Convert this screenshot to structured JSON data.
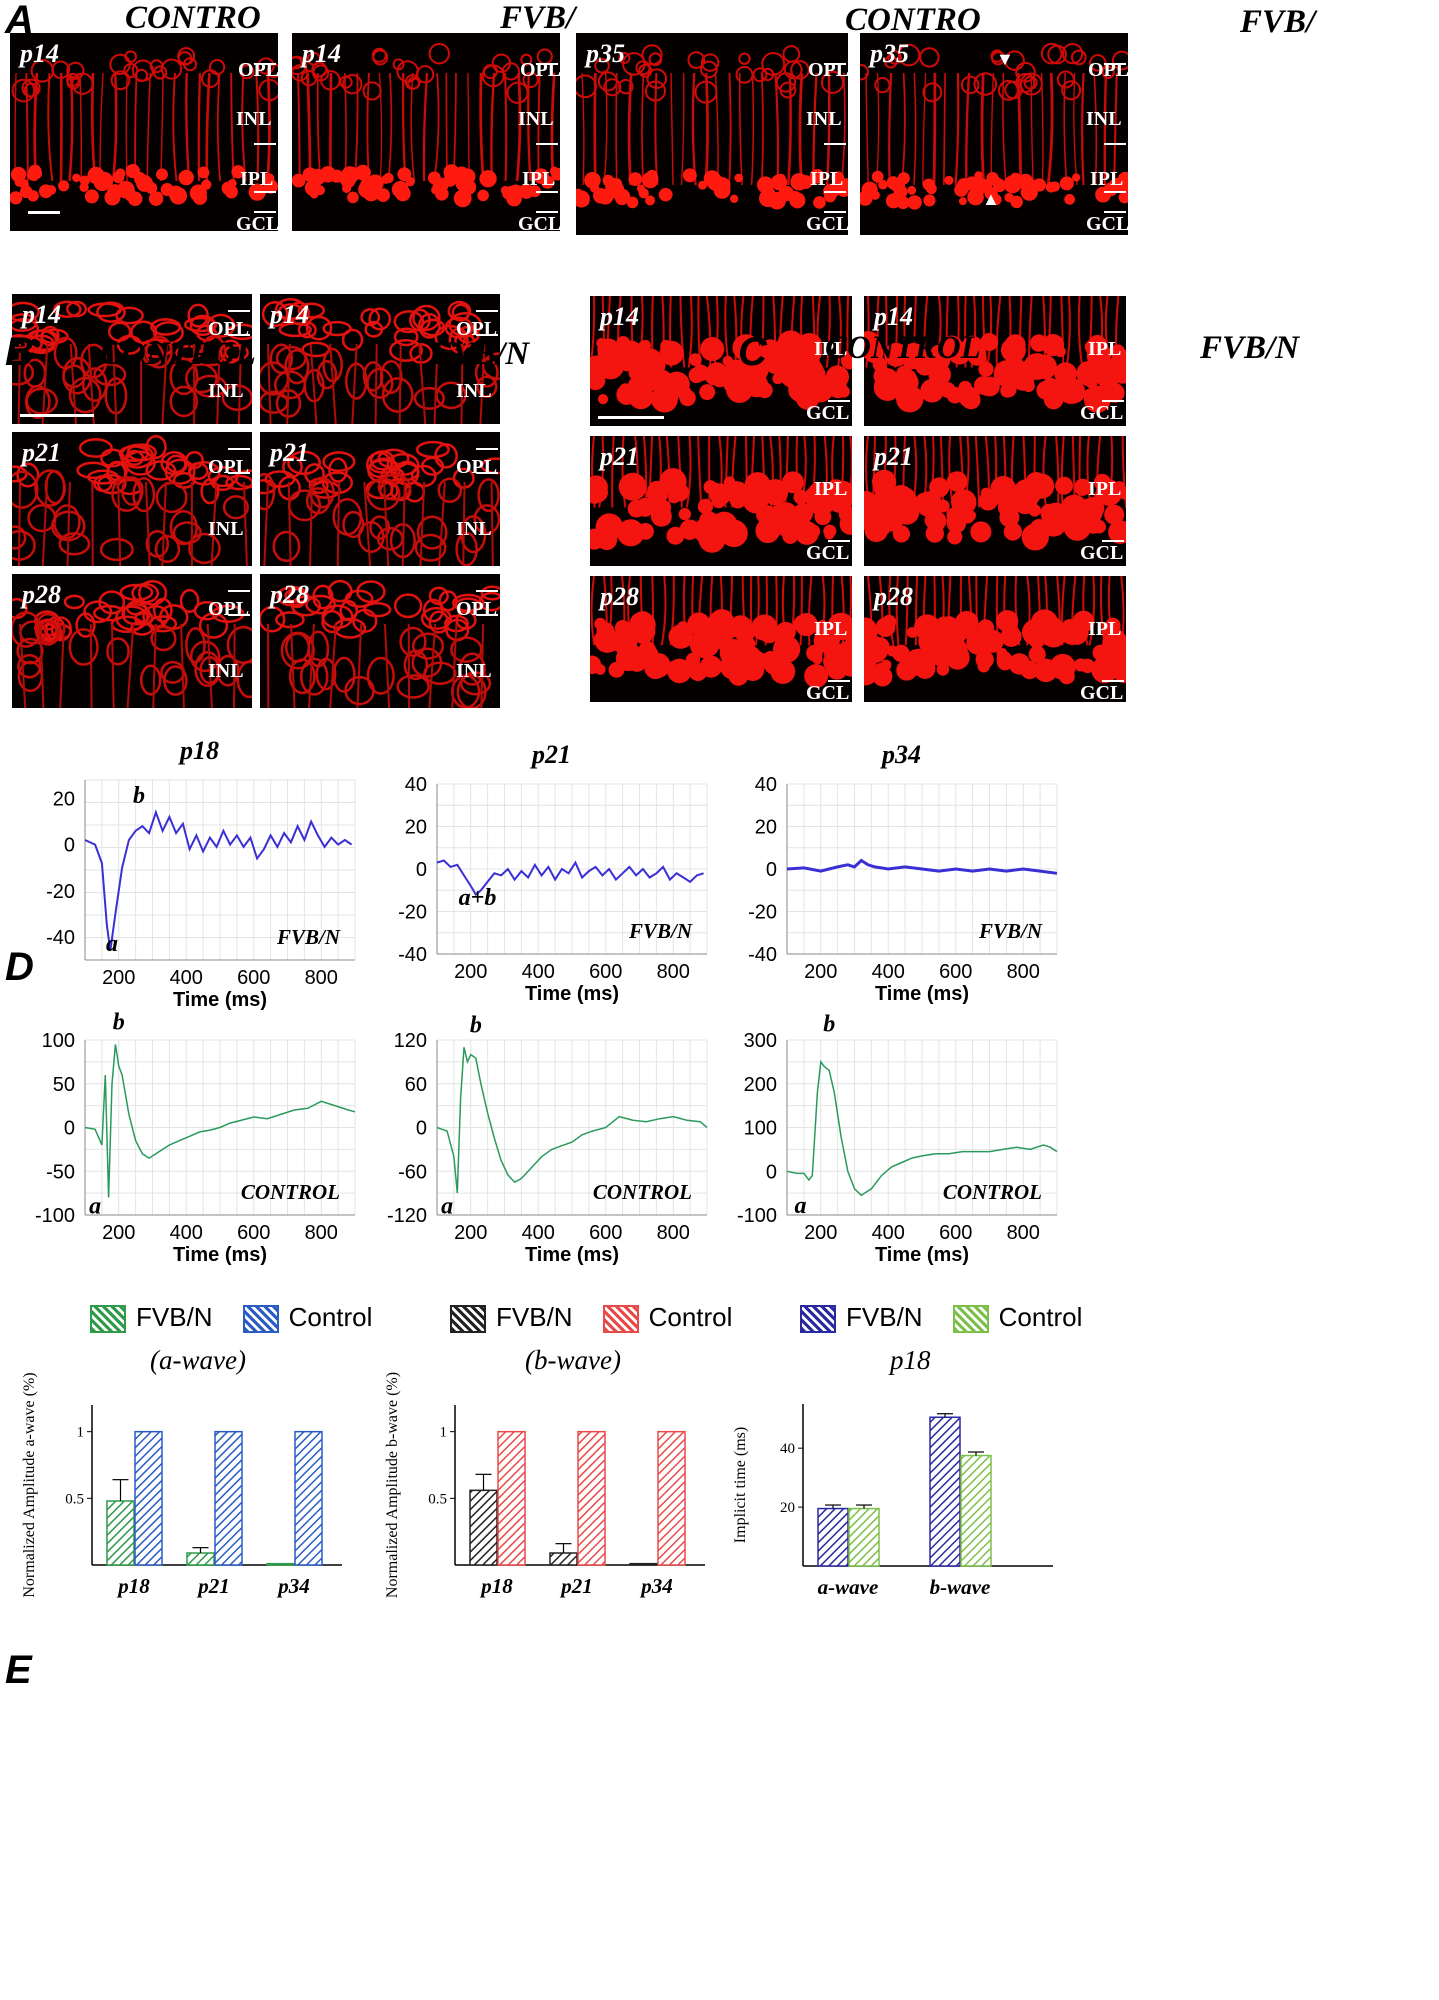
{
  "panels": {
    "A": {
      "letter": "A",
      "titles": [
        "CONTRO",
        "FVB/",
        "CONTRO",
        "FVB/"
      ],
      "images": [
        {
          "age": "p14",
          "labels": [
            "OPL",
            "INL",
            "IPL",
            "GCL"
          ]
        },
        {
          "age": "p14",
          "labels": [
            "OPL",
            "INL",
            "IPL",
            "GCL"
          ]
        },
        {
          "age": "p35",
          "labels": [
            "OPL",
            "INL",
            "IPL",
            "GCL"
          ]
        },
        {
          "age": "p35",
          "labels": [
            "OPL",
            "INL",
            "IPL",
            "GCL"
          ]
        }
      ]
    },
    "B": {
      "letter": "B",
      "titles": [
        "CONTROL",
        "FVB/N"
      ],
      "images": [
        {
          "age": "p14",
          "labels": [
            "OPL",
            "INL"
          ]
        },
        {
          "age": "p14",
          "labels": [
            "OPL",
            "INL"
          ]
        },
        {
          "age": "p21",
          "labels": [
            "OPL",
            "INL"
          ]
        },
        {
          "age": "p21",
          "labels": [
            "OPL",
            "INL"
          ]
        },
        {
          "age": "p28",
          "labels": [
            "OPL",
            "INL"
          ]
        },
        {
          "age": "p28",
          "labels": [
            "OPL",
            "INL"
          ]
        }
      ]
    },
    "C": {
      "letter": "C",
      "titles": [
        "CONTROL",
        "FVB/N"
      ],
      "images": [
        {
          "age": "p14",
          "labels": [
            "IPL",
            "GCL"
          ]
        },
        {
          "age": "p14",
          "labels": [
            "IPL",
            "GCL"
          ]
        },
        {
          "age": "p21",
          "labels": [
            "IPL",
            "GCL"
          ]
        },
        {
          "age": "p21",
          "labels": [
            "IPL",
            "GCL"
          ]
        },
        {
          "age": "p28",
          "labels": [
            "IPL",
            "GCL"
          ]
        },
        {
          "age": "p28",
          "labels": [
            "IPL",
            "GCL"
          ]
        }
      ]
    },
    "D": {
      "letter": "D"
    },
    "E": {
      "letter": "E"
    }
  },
  "chart_data": [
    {
      "type": "line",
      "title": "p18",
      "corner": "FVB/N",
      "xlabel": "Time (ms)",
      "xticks": [
        200,
        400,
        600,
        800
      ],
      "xlim": [
        100,
        900
      ],
      "yticks": [
        20,
        0,
        -20,
        -40
      ],
      "ylim": [
        -50,
        28
      ],
      "color": "#3a2fd4",
      "annotations": [
        {
          "text": "a",
          "x": 180,
          "y": -46
        },
        {
          "text": "b",
          "x": 260,
          "y": 18
        }
      ],
      "series": [
        {
          "x": [
            100,
            130,
            150,
            165,
            175,
            190,
            210,
            230,
            250,
            270,
            290,
            310,
            330,
            350,
            370,
            390,
            410,
            430,
            450,
            470,
            490,
            510,
            530,
            550,
            570,
            590,
            610,
            630,
            650,
            670,
            690,
            710,
            730,
            750,
            770,
            790,
            810,
            830,
            850,
            870,
            890
          ],
          "y": [
            2,
            0,
            -8,
            -35,
            -46,
            -30,
            -10,
            2,
            6,
            8,
            5,
            14,
            6,
            12,
            5,
            9,
            -2,
            4,
            -3,
            3,
            -1,
            6,
            0,
            4,
            -1,
            3,
            -6,
            -2,
            4,
            -1,
            5,
            1,
            8,
            2,
            10,
            4,
            -1,
            3,
            0,
            2,
            0
          ]
        }
      ]
    },
    {
      "type": "line",
      "title": "p21",
      "corner": "FVB/N",
      "xlabel": "Time (ms)",
      "xticks": [
        200,
        400,
        600,
        800
      ],
      "xlim": [
        100,
        900
      ],
      "yticks": [
        40,
        20,
        0,
        -20,
        -40
      ],
      "ylim": [
        -40,
        40
      ],
      "color": "#3a2fd4",
      "annotations": [
        {
          "text": "a+b",
          "x": 220,
          "y": -17
        }
      ],
      "series": [
        {
          "x": [
            100,
            120,
            140,
            160,
            180,
            200,
            215,
            230,
            250,
            270,
            290,
            310,
            330,
            350,
            370,
            390,
            410,
            430,
            450,
            470,
            490,
            510,
            530,
            550,
            570,
            590,
            610,
            630,
            650,
            670,
            690,
            710,
            730,
            750,
            770,
            790,
            810,
            830,
            850,
            870,
            890
          ],
          "y": [
            3,
            4,
            1,
            2,
            -3,
            -8,
            -12,
            -10,
            -6,
            -2,
            -3,
            0,
            -5,
            -1,
            -4,
            2,
            -3,
            1,
            -5,
            0,
            -2,
            3,
            -4,
            -1,
            1,
            -3,
            0,
            -5,
            -2,
            1,
            -3,
            0,
            -4,
            -2,
            1,
            -5,
            -2,
            -4,
            -6,
            -3,
            -2
          ]
        }
      ]
    },
    {
      "type": "line",
      "title": "p34",
      "corner": "FVB/N",
      "xlabel": "Time (ms)",
      "xticks": [
        200,
        400,
        600,
        800
      ],
      "xlim": [
        100,
        900
      ],
      "yticks": [
        40,
        20,
        0,
        -20,
        -40
      ],
      "ylim": [
        -40,
        40
      ],
      "color": "#3a2fd4",
      "annotations": [],
      "series": [
        {
          "x": [
            100,
            150,
            200,
            250,
            280,
            300,
            320,
            340,
            360,
            400,
            450,
            500,
            550,
            600,
            650,
            700,
            750,
            800,
            850,
            900
          ],
          "y": [
            0,
            0.5,
            -1,
            1,
            2,
            1,
            4,
            2,
            1,
            0,
            1,
            0,
            -1,
            0,
            -1,
            0,
            -1,
            0,
            -1,
            -2
          ]
        }
      ]
    },
    {
      "type": "line",
      "title": "",
      "corner": "CONTROL",
      "xlabel": "Time (ms)",
      "xticks": [
        200,
        400,
        600,
        800
      ],
      "xlim": [
        100,
        900
      ],
      "yticks": [
        100,
        50,
        0,
        -50,
        -100
      ],
      "ylim": [
        -100,
        100
      ],
      "color": "#2a9a5c",
      "annotations": [
        {
          "text": "b",
          "x": 200,
          "y": 112
        },
        {
          "text": "a",
          "x": 130,
          "y": -98
        }
      ],
      "series": [
        {
          "x": [
            100,
            130,
            150,
            160,
            170,
            180,
            190,
            200,
            210,
            230,
            250,
            270,
            290,
            310,
            330,
            350,
            380,
            410,
            440,
            470,
            500,
            530,
            560,
            600,
            640,
            680,
            720,
            760,
            800,
            840,
            880,
            900
          ],
          "y": [
            0,
            -2,
            -20,
            60,
            -80,
            50,
            95,
            70,
            60,
            15,
            -15,
            -30,
            -35,
            -30,
            -25,
            -20,
            -15,
            -10,
            -5,
            -3,
            0,
            5,
            8,
            12,
            10,
            15,
            20,
            22,
            30,
            25,
            20,
            18
          ]
        }
      ]
    },
    {
      "type": "line",
      "title": "",
      "corner": "CONTROL",
      "xlabel": "Time (ms)",
      "xticks": [
        200,
        400,
        600,
        800
      ],
      "xlim": [
        100,
        900
      ],
      "yticks": [
        120,
        60,
        0,
        -60,
        -120
      ],
      "ylim": [
        -120,
        120
      ],
      "color": "#2a9a5c",
      "annotations": [
        {
          "text": "b",
          "x": 215,
          "y": 130
        },
        {
          "text": "a",
          "x": 130,
          "y": -118
        }
      ],
      "series": [
        {
          "x": [
            100,
            130,
            150,
            160,
            170,
            180,
            190,
            200,
            215,
            230,
            250,
            270,
            290,
            310,
            330,
            350,
            380,
            410,
            440,
            470,
            500,
            530,
            560,
            600,
            640,
            680,
            720,
            760,
            800,
            840,
            880,
            900
          ],
          "y": [
            0,
            -5,
            -40,
            -90,
            40,
            110,
            90,
            100,
            95,
            60,
            20,
            -15,
            -45,
            -65,
            -75,
            -70,
            -55,
            -40,
            -30,
            -25,
            -20,
            -10,
            -5,
            0,
            15,
            10,
            8,
            12,
            15,
            10,
            8,
            0
          ]
        }
      ]
    },
    {
      "type": "line",
      "title": "",
      "corner": "CONTROL",
      "xlabel": "Time (ms)",
      "xticks": [
        200,
        400,
        600,
        800
      ],
      "xlim": [
        100,
        900
      ],
      "yticks": [
        300,
        200,
        100,
        0,
        -100
      ],
      "ylim": [
        -100,
        300
      ],
      "color": "#2a9a5c",
      "annotations": [
        {
          "text": "b",
          "x": 225,
          "y": 320
        },
        {
          "text": "a",
          "x": 140,
          "y": -95
        }
      ],
      "series": [
        {
          "x": [
            100,
            130,
            150,
            165,
            175,
            190,
            200,
            210,
            225,
            240,
            260,
            280,
            300,
            320,
            350,
            380,
            410,
            440,
            470,
            500,
            540,
            580,
            620,
            660,
            700,
            740,
            780,
            820,
            860,
            880,
            900
          ],
          "y": [
            0,
            -5,
            -5,
            -20,
            -10,
            180,
            250,
            240,
            230,
            180,
            80,
            0,
            -40,
            -55,
            -40,
            -10,
            10,
            20,
            30,
            35,
            40,
            40,
            45,
            45,
            45,
            50,
            55,
            50,
            60,
            55,
            45
          ]
        }
      ]
    },
    {
      "type": "bar",
      "title": "(a-wave)",
      "ylabel": "Normalized Amplitude a-wave (%)",
      "categories": [
        "p18",
        "p21",
        "p34"
      ],
      "yticks": [
        0.5,
        1
      ],
      "ylim": [
        0,
        1.2
      ],
      "series": [
        {
          "name": "FVB/N",
          "values": [
            0.48,
            0.09,
            0.01
          ],
          "err": [
            0.16,
            0.04,
            0
          ],
          "color": "#2e9a4a"
        },
        {
          "name": "Control",
          "values": [
            1,
            1,
            1
          ],
          "err": [
            0,
            0,
            0
          ],
          "color": "#2a5cc4"
        }
      ]
    },
    {
      "type": "bar",
      "title": "(b-wave)",
      "ylabel": "Normalized Amplitude b-wave (%)",
      "categories": [
        "p18",
        "p21",
        "p34"
      ],
      "yticks": [
        0.5,
        1
      ],
      "ylim": [
        0,
        1.2
      ],
      "series": [
        {
          "name": "FVB/N",
          "values": [
            0.56,
            0.09,
            0.01
          ],
          "err": [
            0.12,
            0.07,
            0
          ],
          "color": "#222222"
        },
        {
          "name": "Control",
          "values": [
            1,
            1,
            1
          ],
          "err": [
            0,
            0,
            0
          ],
          "color": "#e84a4a"
        }
      ]
    },
    {
      "type": "bar",
      "title": "p18",
      "ylabel": "Implicit time (ms)",
      "categories": [
        "a-wave",
        "b-wave"
      ],
      "yticks": [
        20,
        40
      ],
      "ylim": [
        0,
        55
      ],
      "series": [
        {
          "name": "FVB/N",
          "values": [
            19.5,
            50.5
          ],
          "err": [
            1.2,
            1.2
          ],
          "color": "#2a2aa0"
        },
        {
          "name": "Control",
          "values": [
            19.5,
            37.5
          ],
          "err": [
            1.2,
            1.2
          ],
          "color": "#7cc04a"
        }
      ]
    }
  ]
}
